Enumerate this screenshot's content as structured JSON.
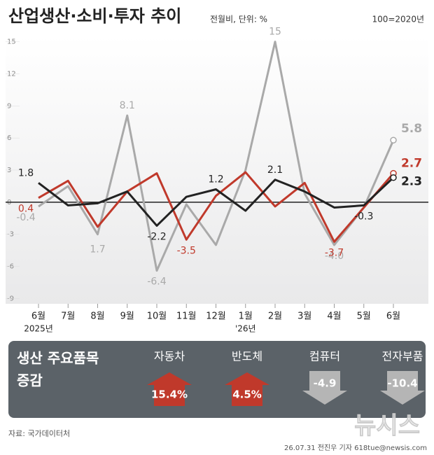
{
  "chart_data": {
    "type": "line",
    "title": "산업생산·소비·투자 추이",
    "subtitle": "전월비, 단위: %",
    "note": "100=2020년",
    "categories": [
      "6월",
      "7월",
      "8월",
      "9월",
      "10월",
      "11월",
      "12월",
      "1월",
      "2월",
      "3월",
      "4월",
      "5월",
      "6월"
    ],
    "x_sublabels": [
      "2025년",
      null,
      null,
      null,
      null,
      null,
      null,
      "'26년",
      null,
      null,
      null,
      null,
      null
    ],
    "ylim": [
      -9.5,
      15.5
    ],
    "yticks": [
      -9,
      -6,
      -3,
      0,
      3,
      6,
      9,
      12,
      15
    ],
    "series": [
      {
        "color": "#a9a9a9",
        "values": [
          -0.4,
          1.5,
          -3.0,
          8.1,
          -6.4,
          -0.2,
          -4.0,
          3.0,
          15,
          0.8,
          -4.0,
          -0.5,
          5.8
        ],
        "value_labels": [
          "-0.4",
          null,
          null,
          "8.1",
          "-6.4",
          null,
          null,
          null,
          "15",
          null,
          "-4.0",
          null,
          "5.8"
        ]
      },
      {
        "color": "#c0392b",
        "values": [
          0.4,
          2.0,
          -2.3,
          1.0,
          2.7,
          -3.5,
          0.6,
          2.8,
          -0.4,
          1.8,
          -3.7,
          -0.5,
          2.7
        ],
        "value_labels": [
          "0.4",
          null,
          null,
          null,
          null,
          "-3.5",
          null,
          null,
          null,
          null,
          "-3.7",
          null,
          "2.7"
        ]
      },
      {
        "color": "#222222",
        "values": [
          1.8,
          -0.3,
          -0.1,
          1.0,
          -2.2,
          0.5,
          1.2,
          -0.8,
          2.1,
          1.0,
          -0.5,
          -0.3,
          2.3
        ],
        "value_labels": [
          "1.8",
          null,
          null,
          null,
          "-2.2",
          null,
          "1.2",
          null,
          "2.1",
          null,
          null,
          "-0.3",
          "2.3"
        ]
      }
    ],
    "annotations": [
      "1.7"
    ]
  },
  "panel": {
    "title": "생산 주요품목",
    "title2": "증감",
    "items": [
      {
        "name": "자동차",
        "value": "15.4%",
        "dir": "up"
      },
      {
        "name": "반도체",
        "value": "4.5%",
        "dir": "up"
      },
      {
        "name": "컴퓨터",
        "value": "-4.9",
        "dir": "down"
      },
      {
        "name": "전자부품",
        "value": "-10.4",
        "dir": "down"
      }
    ]
  },
  "footer": {
    "source": "자료: 국가데이터처",
    "credit": "26.07.31 전진우 기자 618tue@newsis.com",
    "watermark": "뉴시스"
  }
}
